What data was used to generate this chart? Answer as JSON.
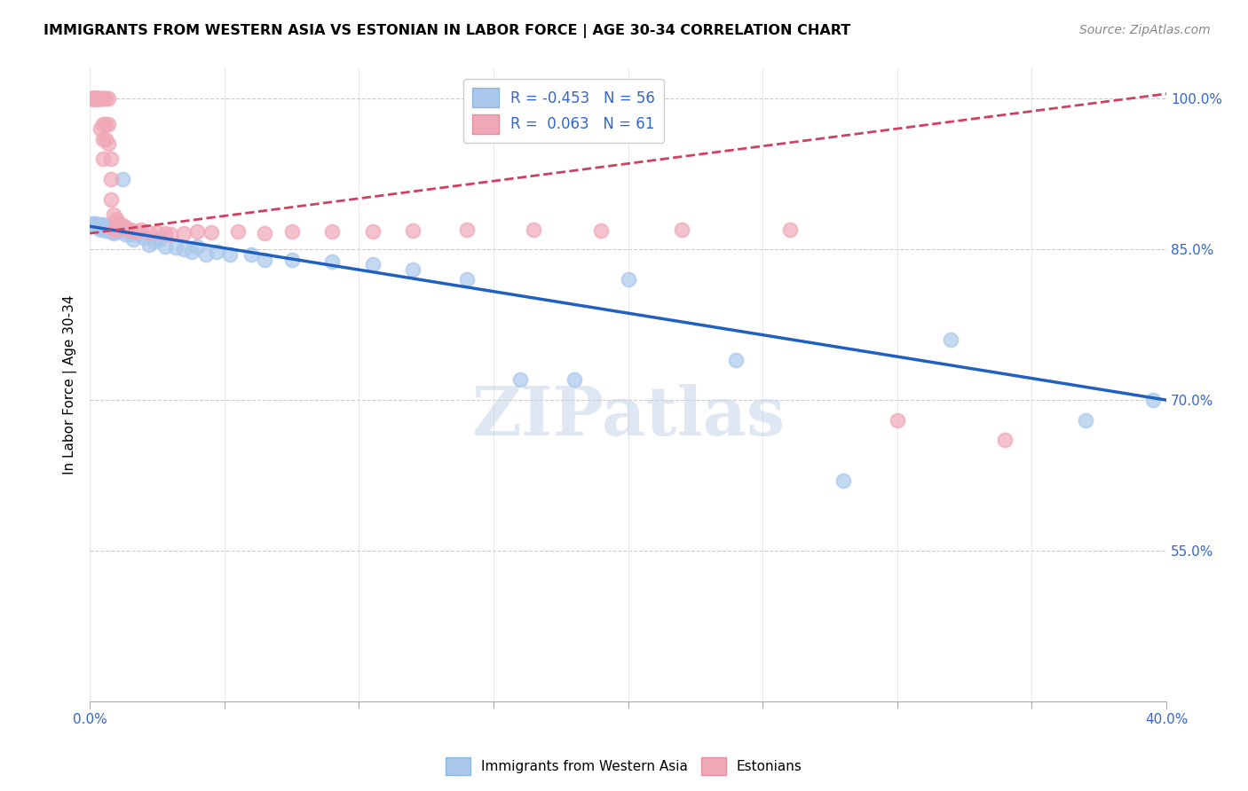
{
  "title": "IMMIGRANTS FROM WESTERN ASIA VS ESTONIAN IN LABOR FORCE | AGE 30-34 CORRELATION CHART",
  "source": "Source: ZipAtlas.com",
  "ylabel": "In Labor Force | Age 30-34",
  "xlim": [
    0.0,
    0.4
  ],
  "ylim": [
    0.4,
    1.03
  ],
  "xticks": [
    0.0,
    0.05,
    0.1,
    0.15,
    0.2,
    0.25,
    0.3,
    0.35,
    0.4
  ],
  "xtick_labels": [
    "0.0%",
    "",
    "",
    "",
    "",
    "",
    "",
    "",
    "40.0%"
  ],
  "yticks_right": [
    1.0,
    0.85,
    0.7,
    0.55
  ],
  "ytick_labels_right": [
    "100.0%",
    "85.0%",
    "70.0%",
    "55.0%"
  ],
  "blue_R": -0.453,
  "blue_N": 56,
  "pink_R": 0.063,
  "pink_N": 61,
  "blue_color": "#aac8ec",
  "pink_color": "#f0a8b8",
  "blue_line_color": "#2060c0",
  "pink_line_color": "#d04060",
  "watermark": "ZIPatlas",
  "blue_trend_x0": 0.0,
  "blue_trend_y0": 0.873,
  "blue_trend_x1": 0.4,
  "blue_trend_y1": 0.7,
  "pink_trend_x0": 0.0,
  "pink_trend_y0": 0.866,
  "pink_trend_x1": 0.4,
  "pink_trend_y1": 1.005,
  "blue_dots_x": [
    0.001,
    0.001,
    0.002,
    0.002,
    0.002,
    0.003,
    0.003,
    0.003,
    0.004,
    0.004,
    0.004,
    0.005,
    0.005,
    0.006,
    0.006,
    0.006,
    0.007,
    0.007,
    0.008,
    0.008,
    0.009,
    0.009,
    0.01,
    0.011,
    0.012,
    0.013,
    0.015,
    0.016,
    0.018,
    0.02,
    0.022,
    0.024,
    0.026,
    0.028,
    0.032,
    0.035,
    0.038,
    0.04,
    0.043,
    0.047,
    0.052,
    0.06,
    0.065,
    0.075,
    0.09,
    0.105,
    0.12,
    0.14,
    0.16,
    0.18,
    0.2,
    0.24,
    0.28,
    0.32,
    0.37,
    0.395
  ],
  "blue_dots_y": [
    0.876,
    0.874,
    0.876,
    0.875,
    0.873,
    0.875,
    0.873,
    0.872,
    0.874,
    0.873,
    0.87,
    0.875,
    0.872,
    0.872,
    0.87,
    0.869,
    0.873,
    0.87,
    0.869,
    0.868,
    0.868,
    0.866,
    0.87,
    0.868,
    0.92,
    0.865,
    0.865,
    0.86,
    0.865,
    0.862,
    0.855,
    0.858,
    0.86,
    0.853,
    0.852,
    0.85,
    0.848,
    0.853,
    0.845,
    0.848,
    0.845,
    0.845,
    0.84,
    0.84,
    0.838,
    0.835,
    0.83,
    0.82,
    0.72,
    0.72,
    0.82,
    0.74,
    0.62,
    0.76,
    0.68,
    0.7
  ],
  "pink_dots_x": [
    0.001,
    0.001,
    0.001,
    0.001,
    0.002,
    0.002,
    0.002,
    0.002,
    0.002,
    0.003,
    0.003,
    0.003,
    0.003,
    0.004,
    0.004,
    0.004,
    0.005,
    0.005,
    0.005,
    0.005,
    0.005,
    0.006,
    0.006,
    0.006,
    0.007,
    0.007,
    0.007,
    0.008,
    0.008,
    0.008,
    0.009,
    0.009,
    0.01,
    0.01,
    0.011,
    0.012,
    0.013,
    0.014,
    0.015,
    0.017,
    0.019,
    0.022,
    0.025,
    0.028,
    0.03,
    0.035,
    0.04,
    0.045,
    0.055,
    0.065,
    0.075,
    0.09,
    0.105,
    0.12,
    0.14,
    0.165,
    0.19,
    0.22,
    0.26,
    0.3,
    0.34
  ],
  "pink_dots_y": [
    1.0,
    1.0,
    1.0,
    1.0,
    1.0,
    1.0,
    1.0,
    1.0,
    1.0,
    1.0,
    1.0,
    1.0,
    1.0,
    1.0,
    1.0,
    0.97,
    1.0,
    1.0,
    0.975,
    0.96,
    0.94,
    1.0,
    0.975,
    0.96,
    1.0,
    0.975,
    0.955,
    0.94,
    0.92,
    0.9,
    0.885,
    0.87,
    0.88,
    0.87,
    0.876,
    0.874,
    0.872,
    0.87,
    0.87,
    0.868,
    0.87,
    0.867,
    0.867,
    0.866,
    0.865,
    0.866,
    0.868,
    0.867,
    0.868,
    0.866,
    0.868,
    0.868,
    0.868,
    0.869,
    0.87,
    0.87,
    0.869,
    0.87,
    0.87,
    0.68,
    0.66
  ]
}
